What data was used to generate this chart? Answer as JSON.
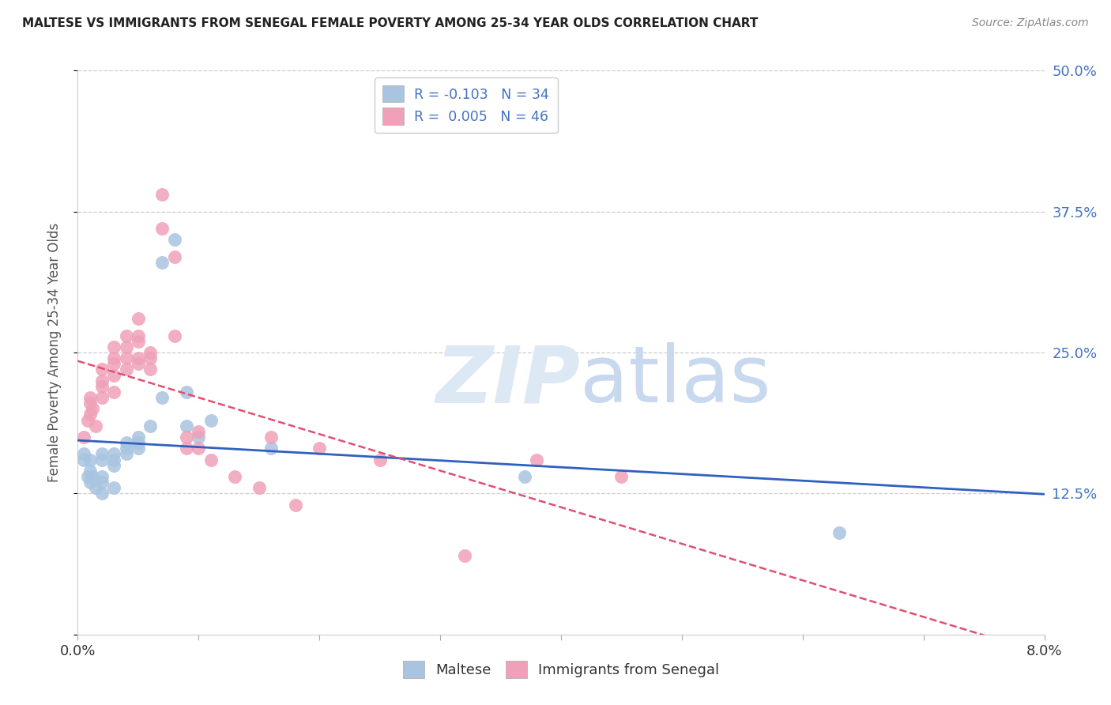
{
  "title": "MALTESE VS IMMIGRANTS FROM SENEGAL FEMALE POVERTY AMONG 25-34 YEAR OLDS CORRELATION CHART",
  "source": "Source: ZipAtlas.com",
  "ylabel": "Female Poverty Among 25-34 Year Olds",
  "ytick_positions": [
    0.0,
    0.125,
    0.25,
    0.375,
    0.5
  ],
  "ytick_labels": [
    "",
    "12.5%",
    "25.0%",
    "37.5%",
    "50.0%"
  ],
  "xtick_positions": [
    0.0,
    0.01,
    0.02,
    0.03,
    0.04,
    0.05,
    0.06,
    0.07,
    0.08
  ],
  "xtick_labels": [
    "0.0%",
    "",
    "",
    "",
    "",
    "",
    "",
    "",
    "8.0%"
  ],
  "xlim": [
    0.0,
    0.08
  ],
  "ylim": [
    0.0,
    0.5
  ],
  "legend_label1": "R = -0.103   N = 34",
  "legend_label2": "R =  0.005   N = 46",
  "legend_bottom_label1": "Maltese",
  "legend_bottom_label2": "Immigrants from Senegal",
  "maltese_color": "#a8c4e0",
  "senegal_color": "#f0a0b8",
  "maltese_line_color": "#3060c0",
  "senegal_line_color": "#e05070",
  "title_color": "#222222",
  "source_color": "#888888",
  "grid_color": "#cccccc",
  "yticklabel_color": "#4472c4",
  "watermark_color": "#dde8f5",
  "maltese_x": [
    0.0005,
    0.0005,
    0.0008,
    0.001,
    0.001,
    0.001,
    0.0012,
    0.0015,
    0.002,
    0.002,
    0.002,
    0.002,
    0.002,
    0.003,
    0.003,
    0.003,
    0.003,
    0.004,
    0.004,
    0.004,
    0.005,
    0.005,
    0.005,
    0.006,
    0.007,
    0.007,
    0.008,
    0.009,
    0.009,
    0.01,
    0.011,
    0.016,
    0.037,
    0.063
  ],
  "maltese_y": [
    0.16,
    0.155,
    0.14,
    0.155,
    0.145,
    0.135,
    0.14,
    0.13,
    0.16,
    0.155,
    0.14,
    0.135,
    0.125,
    0.16,
    0.155,
    0.15,
    0.13,
    0.17,
    0.165,
    0.16,
    0.175,
    0.17,
    0.165,
    0.185,
    0.33,
    0.21,
    0.35,
    0.215,
    0.185,
    0.175,
    0.19,
    0.165,
    0.14,
    0.09
  ],
  "senegal_x": [
    0.0005,
    0.0008,
    0.001,
    0.001,
    0.001,
    0.0012,
    0.0015,
    0.002,
    0.002,
    0.002,
    0.002,
    0.003,
    0.003,
    0.003,
    0.003,
    0.003,
    0.004,
    0.004,
    0.004,
    0.004,
    0.005,
    0.005,
    0.005,
    0.005,
    0.005,
    0.006,
    0.006,
    0.006,
    0.007,
    0.007,
    0.008,
    0.008,
    0.009,
    0.009,
    0.01,
    0.01,
    0.011,
    0.013,
    0.015,
    0.016,
    0.018,
    0.02,
    0.025,
    0.032,
    0.038,
    0.045
  ],
  "senegal_y": [
    0.175,
    0.19,
    0.21,
    0.205,
    0.195,
    0.2,
    0.185,
    0.235,
    0.225,
    0.22,
    0.21,
    0.255,
    0.245,
    0.24,
    0.23,
    0.215,
    0.265,
    0.255,
    0.245,
    0.235,
    0.28,
    0.265,
    0.26,
    0.245,
    0.24,
    0.25,
    0.245,
    0.235,
    0.39,
    0.36,
    0.335,
    0.265,
    0.175,
    0.165,
    0.18,
    0.165,
    0.155,
    0.14,
    0.13,
    0.175,
    0.115,
    0.165,
    0.155,
    0.07,
    0.155,
    0.14
  ]
}
